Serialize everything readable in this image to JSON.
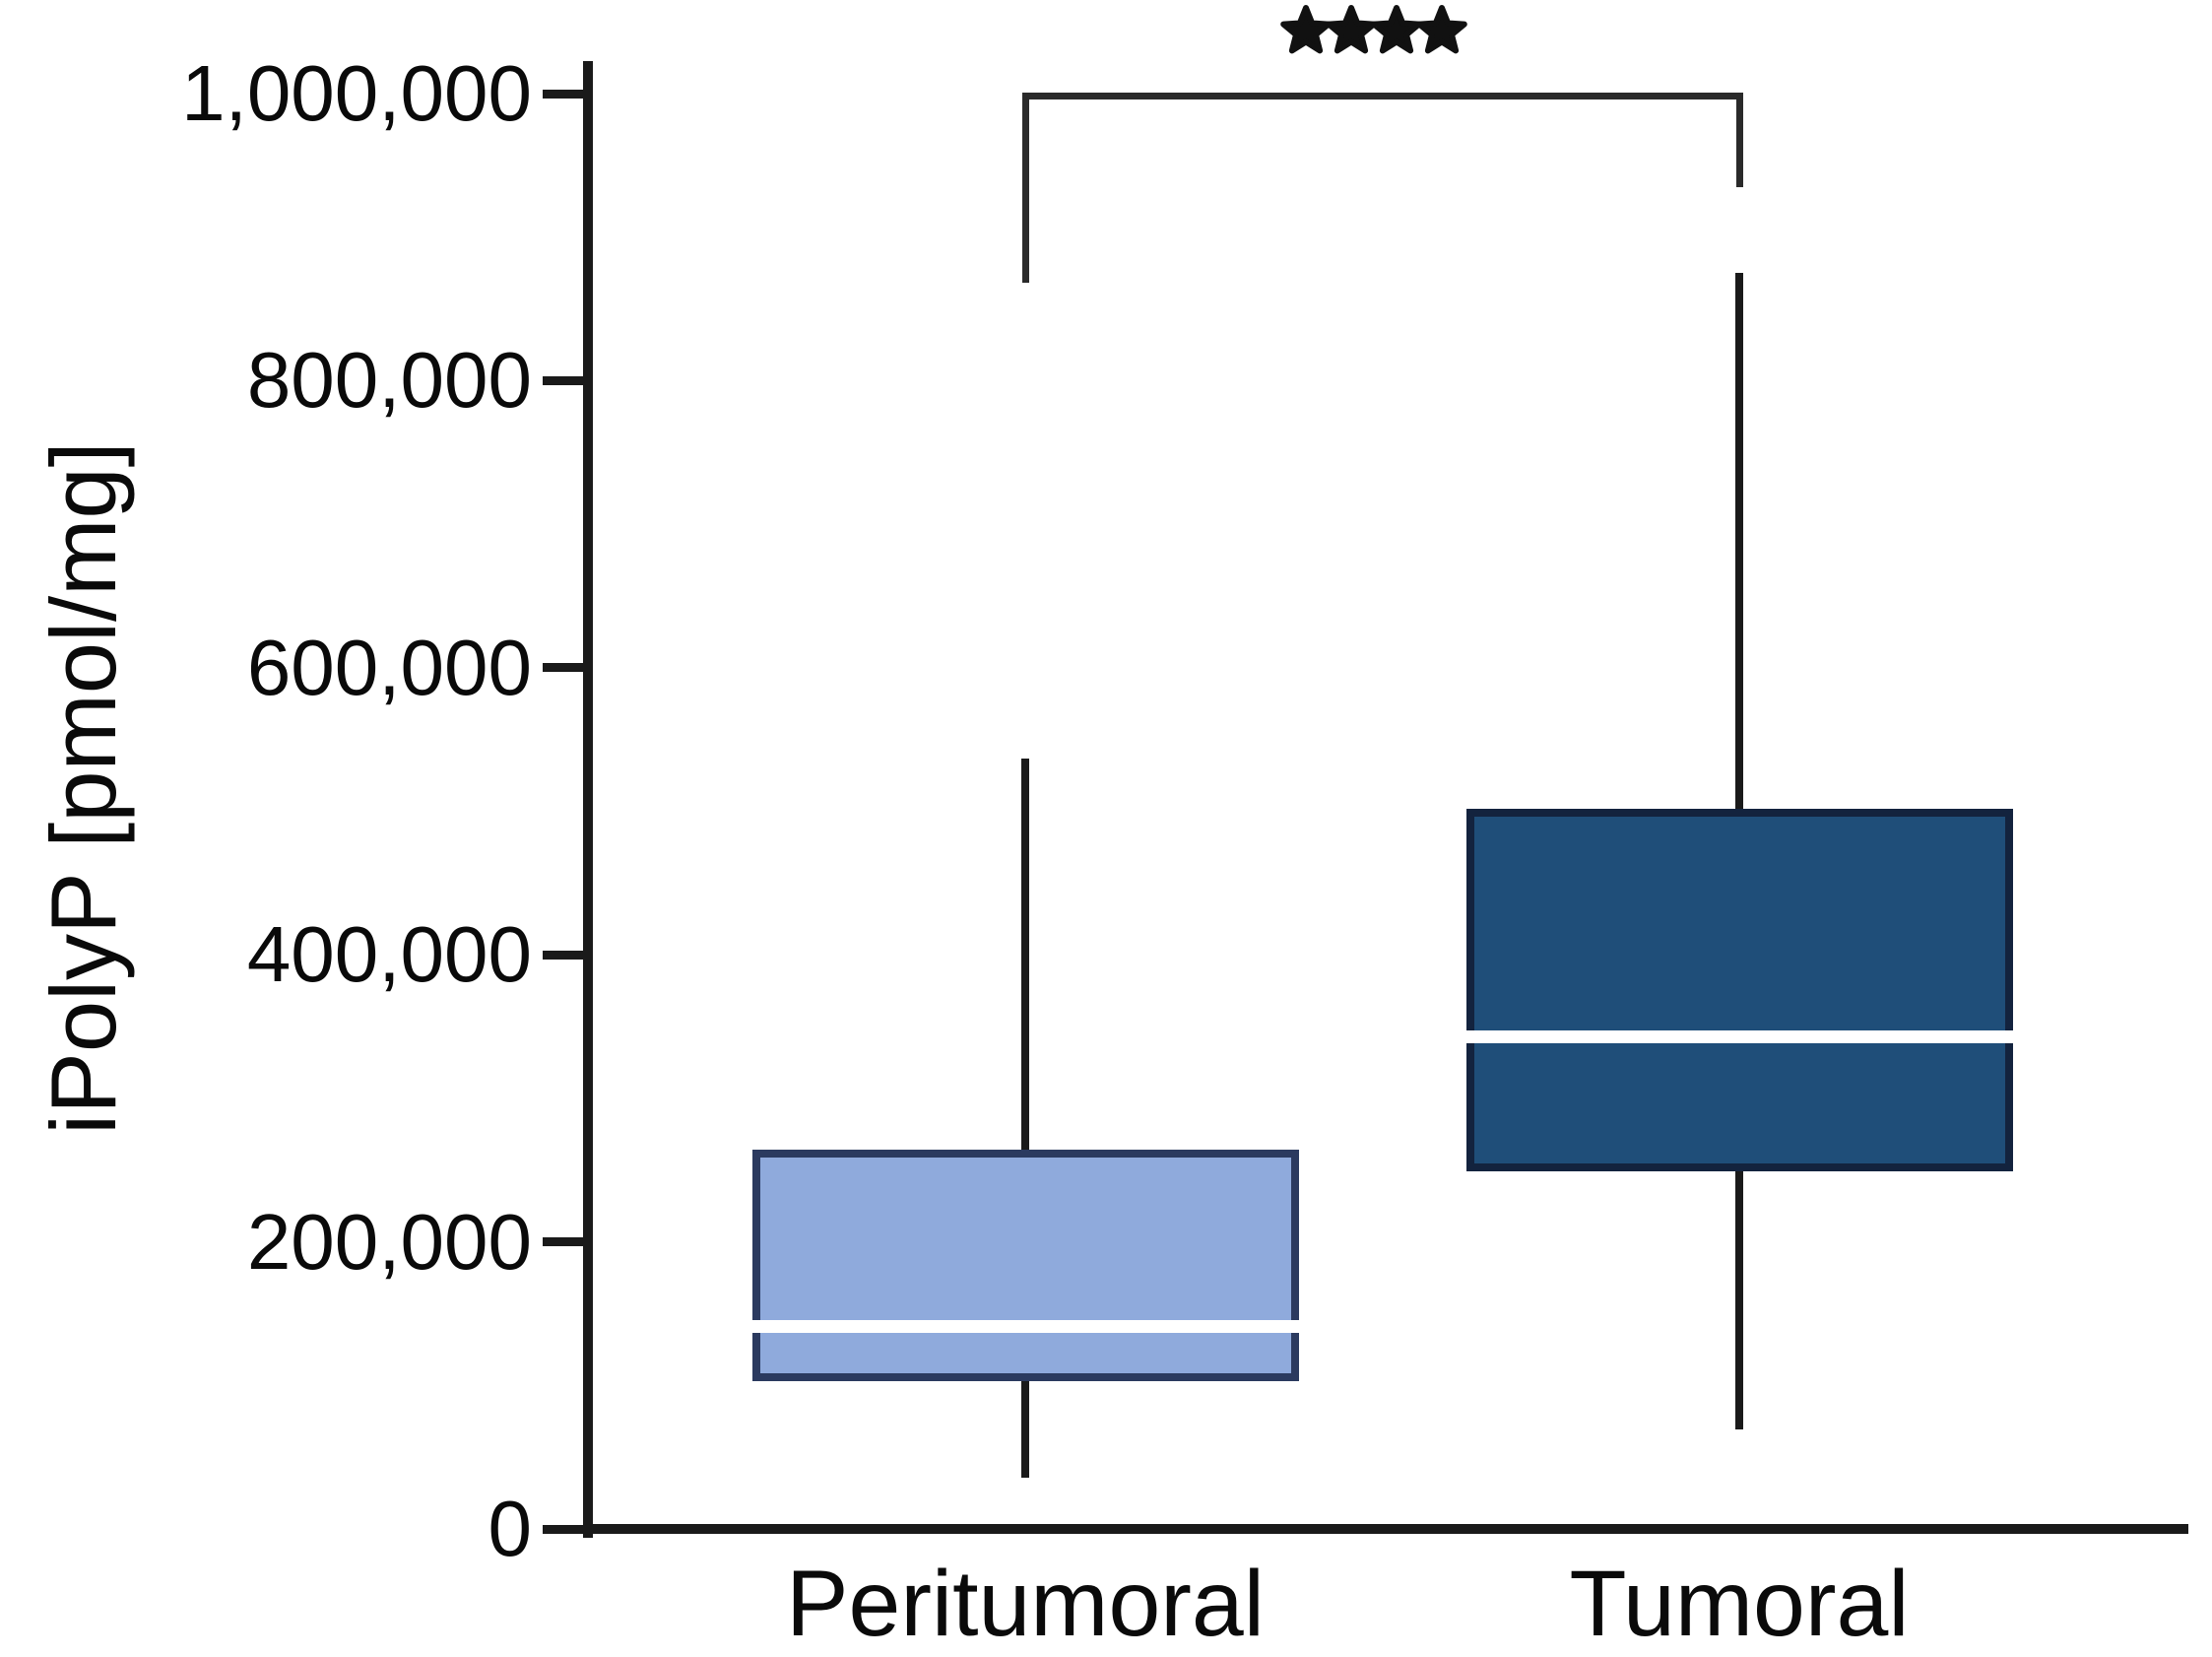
{
  "chart_data": {
    "type": "box",
    "title": "",
    "xlabel": "",
    "ylabel": "iPolyP [pmol/mg]",
    "ylim": [
      0,
      1000000
    ],
    "yticks": [
      0,
      200000,
      400000,
      600000,
      800000,
      1000000
    ],
    "ytick_labels": [
      "0",
      "200,000",
      "400,000",
      "600,000",
      "800,000",
      "1,000,000"
    ],
    "categories": [
      "Peritumoral",
      "Tumoral"
    ],
    "grid": false,
    "legend": "none",
    "series": [
      {
        "name": "Peritumoral",
        "min": 36000,
        "q1": 103000,
        "median": 141000,
        "q3": 264000,
        "max": 537000,
        "fill_color": "#8FAADC",
        "border_color": "#2B3A5F"
      },
      {
        "name": "Tumoral",
        "min": 69000,
        "q1": 249000,
        "median": 343000,
        "q3": 502000,
        "max": 875000,
        "fill_color": "#1F4E79",
        "border_color": "#13233E"
      }
    ],
    "significance": {
      "label": "****",
      "between": [
        "Peritumoral",
        "Tumoral"
      ],
      "bar_value": 998000,
      "left_drop_value": 868000,
      "right_drop_value": 935000
    }
  },
  "colors": {
    "axis": "#1a1a1a",
    "text": "#0a0a0a",
    "median_line": "#ffffff",
    "background": "#ffffff"
  }
}
